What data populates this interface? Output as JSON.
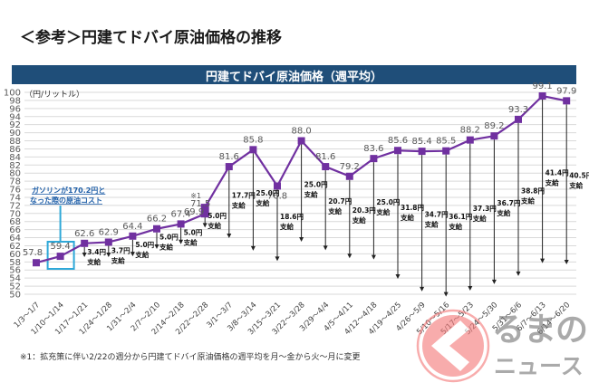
{
  "page_title": "＜参考＞円建てドバイ原油価格の推移",
  "footnote": "※1：拡充策に伴い2/22の週分から円建てドバイ原油価格の週平均を月～金から火～月に変更",
  "callout": {
    "line1": "ガソリンが170.2円と",
    "line2": "なった際の原油コスト",
    "target_index": 1
  },
  "watermark": {
    "line1": "るまの",
    "line2": "ニュース",
    "logo_text": "くるまのニュース"
  },
  "colors": {
    "band": "#1f4e79",
    "line": "#7030a0",
    "callout": "#2ea8d8",
    "arrow": "#222222",
    "grid": "#d9d9d9"
  },
  "chart_data": {
    "type": "line",
    "title": "円建てドバイ原油価格（週平均）",
    "ylabel": "（円/リットル）",
    "xlabel": "",
    "ylim": [
      50,
      100
    ],
    "ytick_step": 2,
    "grid": true,
    "categories": [
      "1/3～1/7",
      "1/10～1/14",
      "1/17～1/21",
      "1/24～1/28",
      "1/31～2/4",
      "2/7～2/10",
      "2/14～2/18",
      "2/22～2/28",
      "3/1～3/7",
      "3/8～3/14",
      "3/15～3/21",
      "3/22～3/28",
      "3/29～4/4",
      "4/5～4/11",
      "4/12～4/18",
      "4/19～4/25",
      "4/26～5/9",
      "5/10～5/16",
      "5/17～5/23",
      "5/24～5/30",
      "5/31～6/6",
      "6/7～6/13",
      "6/14～6/20"
    ],
    "values": [
      57.8,
      59.4,
      62.6,
      62.9,
      64.4,
      66.2,
      67.4,
      71.5,
      81.6,
      85.8,
      76.8,
      88.0,
      81.6,
      79.2,
      83.6,
      85.6,
      85.4,
      85.5,
      88.2,
      89.2,
      93.3,
      99.1,
      97.9
    ],
    "method_change": {
      "index": 7,
      "value_before": 69.9,
      "value_after": 71.5,
      "note": "※1"
    },
    "subsidy": [
      null,
      null,
      3.4,
      3.7,
      5.0,
      5.0,
      5.0,
      5.0,
      17.7,
      25.0,
      18.6,
      25.0,
      20.7,
      20.3,
      25.0,
      31.8,
      34.7,
      36.1,
      37.3,
      36.7,
      38.8,
      41.4,
      40.5
    ],
    "subsidy_unit": "円",
    "subsidy_word": "支給"
  }
}
